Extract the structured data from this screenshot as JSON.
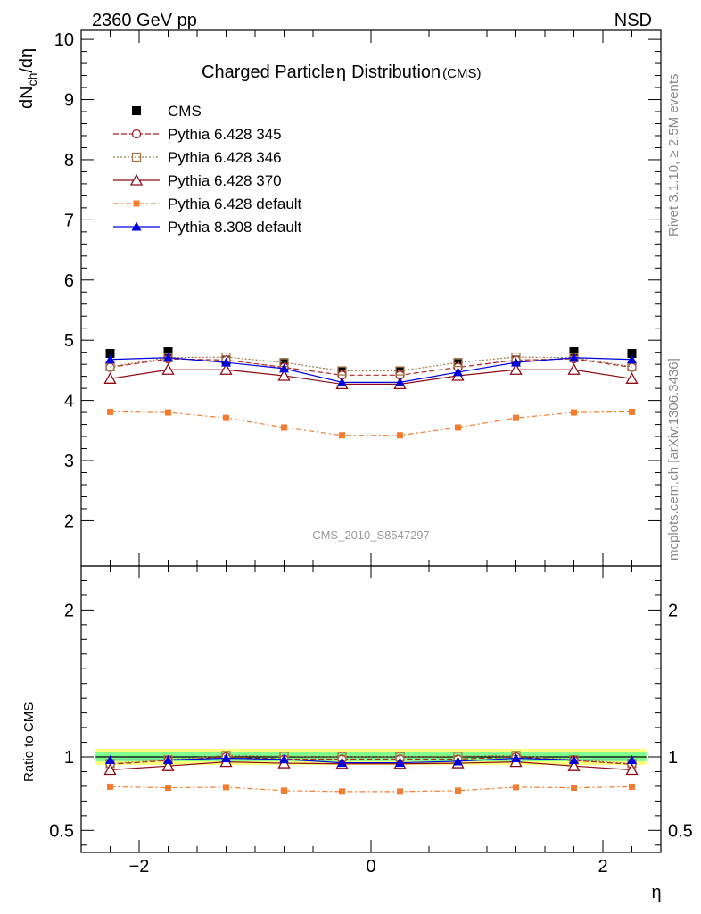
{
  "header": {
    "left": "2360 GeV pp",
    "right": "NSD"
  },
  "side": {
    "rivet": "Rivet 3.1.10, ≥ 2.5M events",
    "mcplots": "mcplots.cern.ch [arXiv:1306.3436]"
  },
  "chart_data": [
    {
      "type": "scatter",
      "title": "Charged Particle",
      "title_symbol": "η",
      "title_rest": "Distribution",
      "title_suffix": "(CMS)",
      "analysis_label": "CMS_2010_S8547297",
      "ylabel_main": "dN",
      "ylabel_sub": "ch",
      "ylabel_rest": "/dη",
      "xlabel": "η",
      "xlim": [
        -2.5,
        2.5
      ],
      "ylim": [
        1.25,
        10.15
      ],
      "yticks": [
        2,
        3,
        4,
        5,
        6,
        7,
        8,
        9,
        10
      ],
      "legend_position": "top-left",
      "x": [
        -2.25,
        -1.75,
        -1.25,
        -0.75,
        -0.25,
        0.25,
        0.75,
        1.25,
        1.75,
        2.25
      ],
      "series": [
        {
          "name": "CMS",
          "color": "#000000",
          "marker": "square-filled",
          "line": "none",
          "values": [
            4.78,
            4.81,
            4.67,
            4.61,
            4.48,
            4.48,
            4.61,
            4.67,
            4.81,
            4.78
          ]
        },
        {
          "name": "Pythia 6.428 345",
          "color": "#b22222",
          "marker": "circle-open",
          "line": "dashed",
          "values": [
            4.55,
            4.69,
            4.67,
            4.55,
            4.42,
            4.42,
            4.55,
            4.67,
            4.69,
            4.55
          ]
        },
        {
          "name": "Pythia 6.428 346",
          "color": "#a0784a",
          "marker": "square-open",
          "line": "dotted",
          "values": [
            4.56,
            4.71,
            4.72,
            4.63,
            4.49,
            4.49,
            4.63,
            4.72,
            4.71,
            4.56
          ]
        },
        {
          "name": "Pythia 6.428 370",
          "color": "#8b0a14",
          "marker": "triangle-open",
          "line": "solid",
          "values": [
            4.36,
            4.51,
            4.51,
            4.41,
            4.27,
            4.27,
            4.41,
            4.51,
            4.51,
            4.36
          ]
        },
        {
          "name": "Pythia 6.428 default",
          "color": "#f47c30",
          "marker": "square-small-filled",
          "line": "dashdot",
          "values": [
            3.81,
            3.8,
            3.71,
            3.55,
            3.42,
            3.42,
            3.55,
            3.71,
            3.8,
            3.81
          ]
        },
        {
          "name": "Pythia 8.308 default",
          "color": "#0000dd",
          "marker": "triangle-filled",
          "line": "solid",
          "values": [
            4.68,
            4.71,
            4.63,
            4.53,
            4.3,
            4.3,
            4.47,
            4.63,
            4.71,
            4.68
          ]
        }
      ]
    },
    {
      "type": "scatter",
      "ylabel": "Ratio to CMS",
      "xlabel": "η",
      "xlim": [
        -2.5,
        2.5
      ],
      "ylim": [
        0.35,
        2.3
      ],
      "yticks": [
        0.5,
        1,
        2
      ],
      "ytick_labels": [
        "0.5",
        "1",
        "2"
      ],
      "xticks": [
        -2,
        0,
        2
      ],
      "xtick_labels": [
        "−2",
        "0",
        "2"
      ],
      "band_colors": {
        "inner": "#7fff8f",
        "outer": "#ffff80"
      },
      "band_inner": 0.03,
      "band_outer": 0.055,
      "x": [
        -2.25,
        -1.75,
        -1.25,
        -0.75,
        -0.25,
        0.25,
        0.75,
        1.25,
        1.75,
        2.25
      ],
      "series": [
        {
          "name": "Pythia 6.428 345",
          "values": [
            0.95,
            0.975,
            1.0,
            0.985,
            0.985,
            0.985,
            0.985,
            1.0,
            0.975,
            0.95
          ]
        },
        {
          "name": "Pythia 6.428 346",
          "values": [
            0.955,
            0.98,
            1.01,
            1.004,
            1.002,
            1.002,
            1.004,
            1.01,
            0.98,
            0.955
          ]
        },
        {
          "name": "Pythia 6.428 370",
          "values": [
            0.912,
            0.938,
            0.966,
            0.957,
            0.953,
            0.953,
            0.957,
            0.966,
            0.938,
            0.912
          ]
        },
        {
          "name": "Pythia 6.428 default",
          "values": [
            0.797,
            0.79,
            0.794,
            0.77,
            0.764,
            0.764,
            0.77,
            0.794,
            0.79,
            0.797
          ]
        },
        {
          "name": "Pythia 8.308 default",
          "values": [
            0.979,
            0.979,
            0.991,
            0.983,
            0.96,
            0.96,
            0.97,
            0.991,
            0.979,
            0.979
          ]
        }
      ]
    }
  ]
}
